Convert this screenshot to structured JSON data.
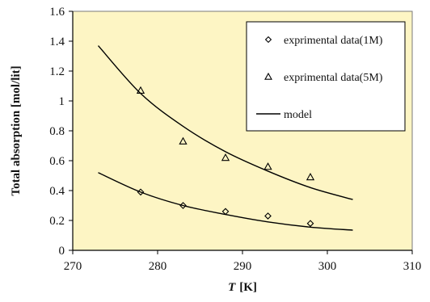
{
  "chart_data": {
    "type": "scatter",
    "xlabel_var": "T",
    "xlabel_unit": "[K]",
    "ylabel": "Total absorption [mol/lit]",
    "xlim": [
      270,
      310
    ],
    "ylim": [
      0,
      1.6
    ],
    "xticks": [
      "270",
      "280",
      "290",
      "300",
      "310"
    ],
    "yticks": [
      "0",
      "0.2",
      "0.4",
      "0.6",
      "0.8",
      "1",
      "1.2",
      "1.4",
      "1.6"
    ],
    "grid": false,
    "legend_position": "top-right",
    "plot_background": "#fdf5c4",
    "series": [
      {
        "name": "exprimental data(1M)",
        "kind": "scatter",
        "marker": "diamond",
        "x": [
          278,
          283,
          288,
          293,
          298
        ],
        "y": [
          0.39,
          0.3,
          0.26,
          0.23,
          0.18
        ]
      },
      {
        "name": "exprimental data(5M)",
        "kind": "scatter",
        "marker": "triangle",
        "x": [
          278,
          283,
          288,
          293,
          298
        ],
        "y": [
          1.07,
          0.73,
          0.62,
          0.56,
          0.49
        ]
      },
      {
        "name": "model",
        "kind": "line",
        "curves": [
          {
            "x": [
              273,
              278,
              283,
              288,
              293,
              298,
              303
            ],
            "y": [
              1.37,
              1.05,
              0.83,
              0.66,
              0.53,
              0.42,
              0.34
            ]
          },
          {
            "x": [
              273,
              278,
              283,
              288,
              293,
              298,
              303
            ],
            "y": [
              0.52,
              0.39,
              0.3,
              0.24,
              0.19,
              0.155,
              0.135
            ]
          }
        ]
      }
    ]
  }
}
